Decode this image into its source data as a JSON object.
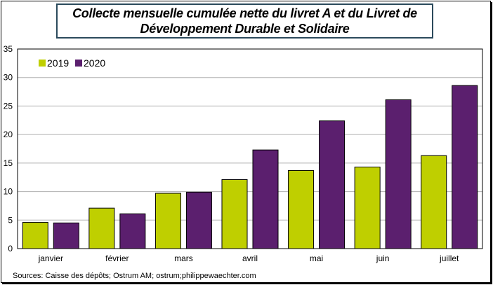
{
  "chart_data": {
    "type": "bar",
    "title_lines": [
      "Collecte mensuelle cumulée nette du livret A et du Livret de",
      "Développement Durable et Solidaire"
    ],
    "categories": [
      "janvier",
      "février",
      "mars",
      "avril",
      "mai",
      "juin",
      "juillet"
    ],
    "series": [
      {
        "name": "2019",
        "color": "#bfcf00",
        "values": [
          4.6,
          7.1,
          9.7,
          12.1,
          13.7,
          14.3,
          16.3
        ]
      },
      {
        "name": "2020",
        "color": "#5b1f6e",
        "values": [
          4.5,
          6.1,
          9.9,
          17.3,
          22.4,
          26.1,
          28.6
        ]
      }
    ],
    "ylim": [
      0,
      35
    ],
    "yticks": [
      0,
      5,
      10,
      15,
      20,
      25,
      30,
      35
    ],
    "grid": true,
    "legend_position": "top-left",
    "xlabel": "",
    "ylabel": ""
  },
  "source_text": "Sources: Caisse des dépôts; Ostrum AM; ostrum;philippewaechter.com"
}
